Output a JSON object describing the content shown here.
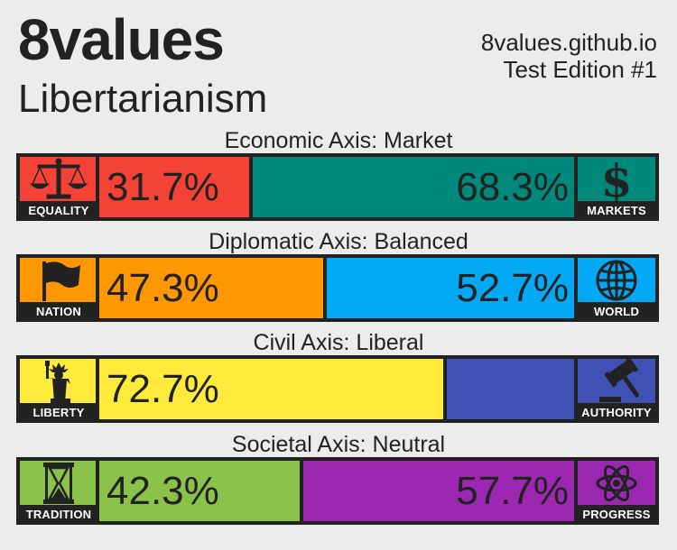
{
  "header": {
    "title": "8values",
    "ideology": "Libertarianism",
    "site": "8values.github.io",
    "edition": "Test Edition #1"
  },
  "axes": [
    {
      "label": "Economic Axis: Market",
      "left": {
        "caption": "EQUALITY",
        "percent": 31.7,
        "percent_text": "31.7%",
        "color": "#f44336",
        "icon": "scales-icon"
      },
      "right": {
        "caption": "MARKETS",
        "percent": 68.3,
        "percent_text": "68.3%",
        "color": "#00897b",
        "icon": "dollar-icon"
      }
    },
    {
      "label": "Diplomatic Axis: Balanced",
      "left": {
        "caption": "NATION",
        "percent": 47.3,
        "percent_text": "47.3%",
        "color": "#ff9800",
        "icon": "flag-icon"
      },
      "right": {
        "caption": "WORLD",
        "percent": 52.7,
        "percent_text": "52.7%",
        "color": "#03a9f4",
        "icon": "globe-icon"
      }
    },
    {
      "label": "Civil Axis: Liberal",
      "left": {
        "caption": "LIBERTY",
        "percent": 72.7,
        "percent_text": "72.7%",
        "color": "#ffeb3b",
        "icon": "statue-of-liberty-icon"
      },
      "right": {
        "caption": "AUTHORITY",
        "percent": 27.3,
        "percent_text": "",
        "color": "#3f51b5",
        "icon": "gavel-icon"
      }
    },
    {
      "label": "Societal Axis: Neutral",
      "left": {
        "caption": "TRADITION",
        "percent": 42.3,
        "percent_text": "42.3%",
        "color": "#8bc34a",
        "icon": "hourglass-icon"
      },
      "right": {
        "caption": "PROGRESS",
        "percent": 57.7,
        "percent_text": "57.7%",
        "color": "#9c27b0",
        "icon": "atom-icon"
      }
    }
  ]
}
